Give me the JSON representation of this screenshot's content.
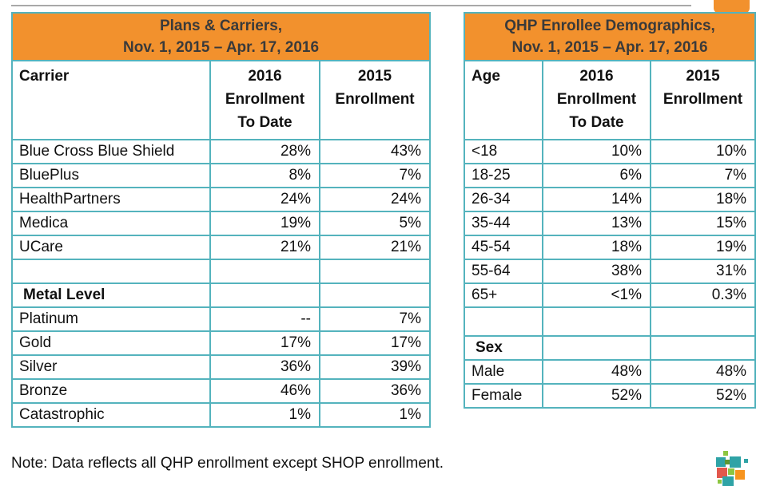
{
  "page": {
    "note": "Note: Data reflects all QHP enrollment except SHOP enrollment."
  },
  "colors": {
    "header_fill": "#F2912D",
    "table_border": "#54B3BD",
    "title_text": "#3A3A3A",
    "top_rule": "#A8A8A8",
    "logo_teal": "#2FA3A6",
    "logo_green": "#8CC640",
    "logo_olive": "#5E9732",
    "logo_red": "#E2574C",
    "logo_orange": "#F7941E"
  },
  "tables": [
    {
      "id": "plans-carriers",
      "title": "Plans & Carriers,\nNov. 1, 2015 – Apr. 17, 2016",
      "columns": [
        "Carrier",
        "2016\nEnrollment\nTo Date",
        "2015\nEnrollment"
      ],
      "rows": [
        {
          "label": "Blue Cross Blue Shield",
          "v2016": "28%",
          "v2015": "43%"
        },
        {
          "label": "BluePlus",
          "v2016": "8%",
          "v2015": "7%"
        },
        {
          "label": "HealthPartners",
          "v2016": "24%",
          "v2015": "24%"
        },
        {
          "label": "Medica",
          "v2016": "19%",
          "v2015": "5%"
        },
        {
          "label": "UCare",
          "v2016": "21%",
          "v2015": "21%"
        },
        {
          "label": "",
          "v2016": "",
          "v2015": ""
        },
        {
          "label": "Metal Level",
          "v2016": "",
          "v2015": "",
          "section": true
        },
        {
          "label": "Platinum",
          "v2016": "--",
          "v2015": "7%"
        },
        {
          "label": "Gold",
          "v2016": "17%",
          "v2015": "17%"
        },
        {
          "label": "Silver",
          "v2016": "36%",
          "v2015": "39%"
        },
        {
          "label": "Bronze",
          "v2016": "46%",
          "v2015": "36%"
        },
        {
          "label": "Catastrophic",
          "v2016": "1%",
          "v2015": "1%"
        }
      ]
    },
    {
      "id": "qhp-enrollee-demographics",
      "title": "QHP Enrollee Demographics,\nNov. 1, 2015 – Apr. 17, 2016",
      "columns": [
        "Age",
        "2016\nEnrollment\nTo Date",
        "2015\nEnrollment"
      ],
      "rows": [
        {
          "label": "<18",
          "v2016": "10%",
          "v2015": "10%"
        },
        {
          "label": "18-25",
          "v2016": "6%",
          "v2015": "7%"
        },
        {
          "label": "26-34",
          "v2016": "14%",
          "v2015": "18%"
        },
        {
          "label": "35-44",
          "v2016": "13%",
          "v2015": "15%"
        },
        {
          "label": "45-54",
          "v2016": "18%",
          "v2015": "19%"
        },
        {
          "label": "55-64",
          "v2016": "38%",
          "v2015": "31%"
        },
        {
          "label": "65+",
          "v2016": "<1%",
          "v2015": "0.3%"
        },
        {
          "label": "",
          "v2016": "",
          "v2015": "",
          "tall": true
        },
        {
          "label": "Sex",
          "v2016": "",
          "v2015": "",
          "section": true
        },
        {
          "label": "Male",
          "v2016": "48%",
          "v2015": "48%"
        },
        {
          "label": "Female",
          "v2016": "52%",
          "v2015": "52%"
        }
      ]
    }
  ]
}
